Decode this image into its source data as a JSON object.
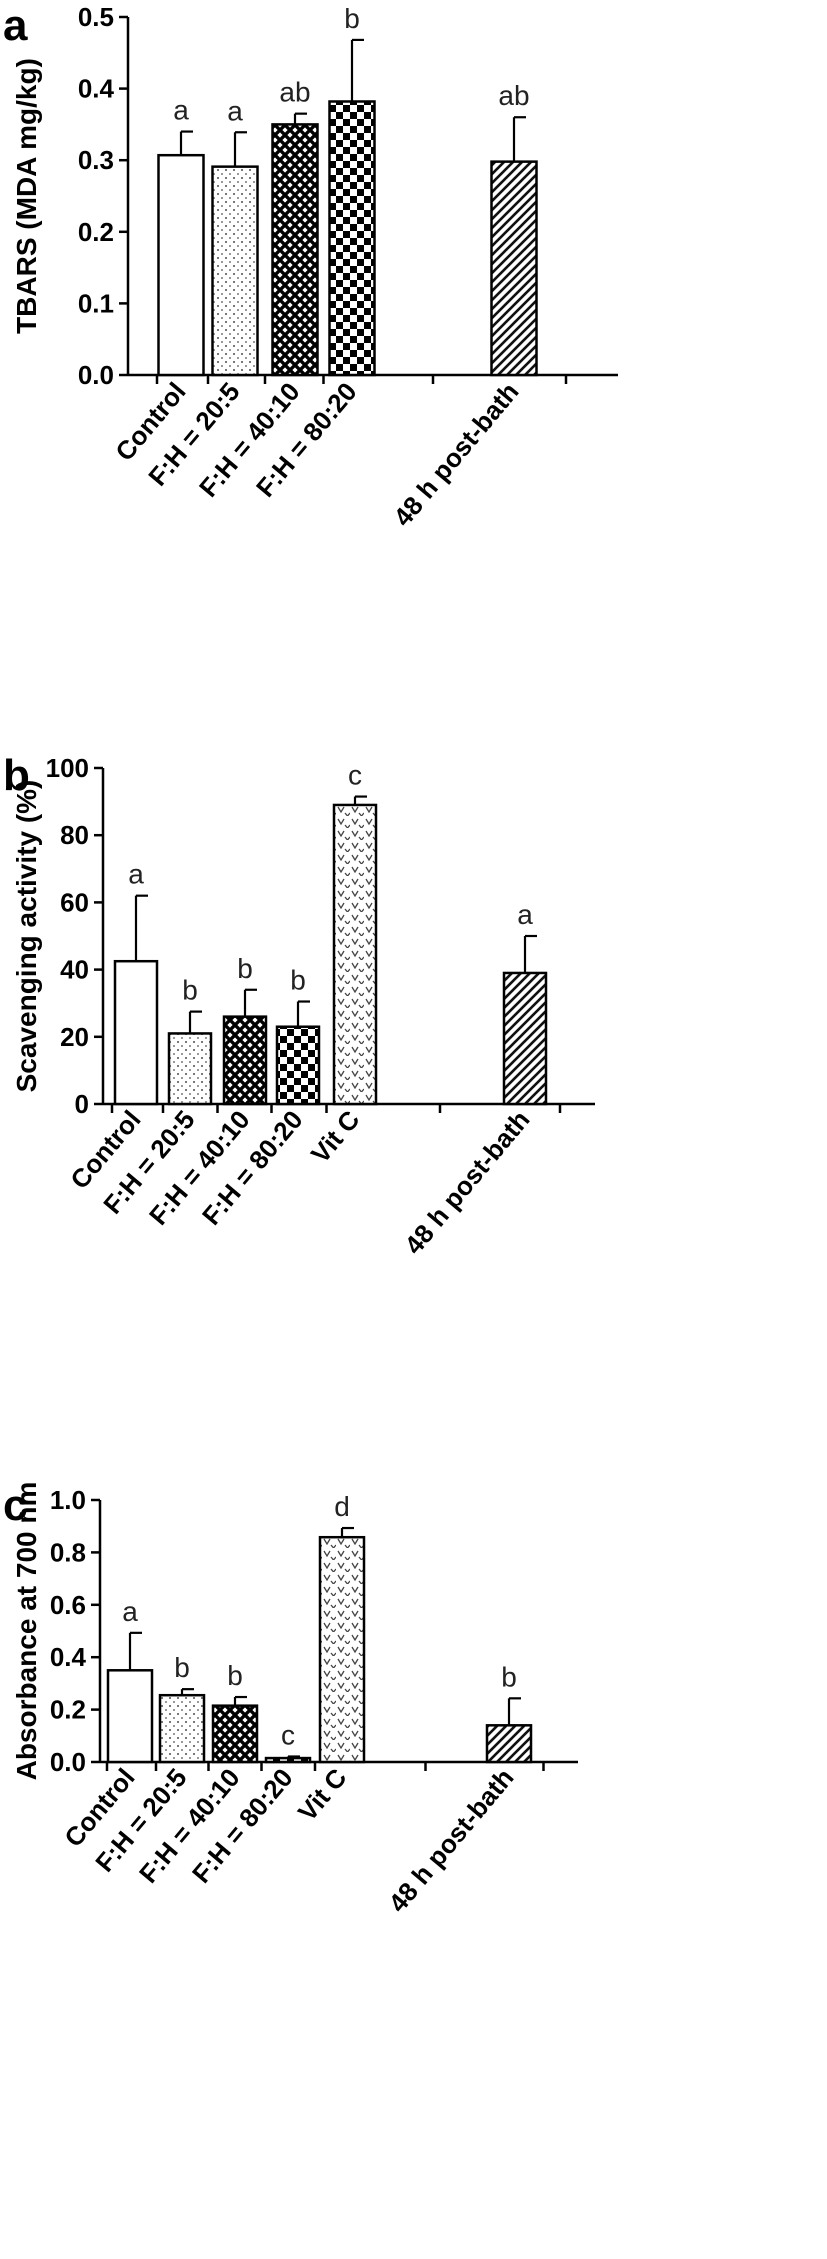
{
  "chart_data": [
    {
      "panel": "a",
      "type": "bar",
      "ylabel": "TBARS (MDA mg/kg)",
      "ylim": [
        0,
        0.5
      ],
      "yticks": [
        "0.0",
        "0.1",
        "0.2",
        "0.3",
        "0.4",
        "0.5"
      ],
      "categories": [
        "Control",
        "F:H = 20:5",
        "F:H = 40:10",
        "F:H = 80:20",
        "48 h post-bath"
      ],
      "values": [
        0.307,
        0.291,
        0.35,
        0.382,
        0.298
      ],
      "errors": [
        0.033,
        0.048,
        0.015,
        0.086,
        0.062
      ],
      "labels": [
        "a",
        "a",
        "ab",
        "b",
        "ab"
      ],
      "patterns": [
        "none",
        "dots",
        "crosshatch",
        "checker",
        "diagonal"
      ]
    },
    {
      "panel": "b",
      "type": "bar",
      "ylabel": "Scavenging activity  (%)",
      "ylim": [
        0,
        100
      ],
      "yticks": [
        "0",
        "20",
        "40",
        "60",
        "80",
        "100"
      ],
      "categories": [
        "Control",
        "F:H = 20:5",
        "F:H = 40:10",
        "F:H = 80:20",
        "Vit C",
        "48 h post-bath"
      ],
      "values": [
        42.5,
        21.0,
        26.0,
        23.0,
        89.0,
        39.0
      ],
      "errors": [
        19.5,
        6.5,
        8.0,
        7.5,
        2.5,
        11.0
      ],
      "labels": [
        "a",
        "b",
        "b",
        "b",
        "c",
        "a"
      ],
      "patterns": [
        "none",
        "dots",
        "crosshatch",
        "checker",
        "vees",
        "diagonal"
      ]
    },
    {
      "panel": "c",
      "type": "bar",
      "ylabel": "Absorbance at 700 nm",
      "ylim": [
        0,
        1.0
      ],
      "yticks": [
        "0.0",
        "0.2",
        "0.4",
        "0.6",
        "0.8",
        "1.0"
      ],
      "categories": [
        "Control",
        "F:H = 20:5",
        "F:H = 40:10",
        "F:H = 80:20",
        "Vit C",
        "48 h post-bath"
      ],
      "values": [
        0.35,
        0.255,
        0.215,
        0.015,
        0.858,
        0.14
      ],
      "errors": [
        0.143,
        0.023,
        0.033,
        0.006,
        0.035,
        0.103
      ],
      "labels": [
        "a",
        "b",
        "b",
        "c",
        "d",
        "b"
      ],
      "patterns": [
        "none",
        "dots",
        "crosshatch",
        "checker",
        "vees",
        "diagonal"
      ]
    }
  ]
}
